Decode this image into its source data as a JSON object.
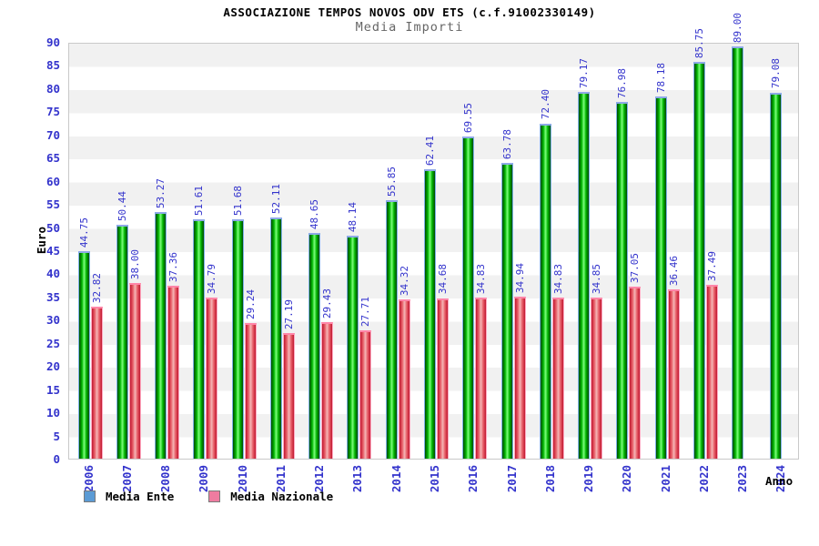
{
  "title": "ASSOCIAZIONE TEMPOS NOVOS ODV ETS (c.f.91002330149)",
  "subtitle": "Media Importi",
  "axes": {
    "y_title": "Euro",
    "x_title": "Anno"
  },
  "legend": [
    {
      "label": "Media Ente",
      "swatch_color": "#5b9bd5"
    },
    {
      "label": "Media Nazionale",
      "swatch_color": "#ee7ca0"
    }
  ],
  "chart_data": {
    "type": "bar",
    "title": "ASSOCIAZIONE TEMPOS NOVOS ODV ETS (c.f.91002330149)",
    "subtitle": "Media Importi",
    "xlabel": "Anno",
    "ylabel": "Euro",
    "ylim": [
      0,
      90
    ],
    "ytick_step": 5,
    "grid": "alternating-horizontal-bands",
    "legend_position": "bottom-left",
    "categories": [
      "2006",
      "2007",
      "2008",
      "2009",
      "2010",
      "2011",
      "2012",
      "2013",
      "2014",
      "2015",
      "2016",
      "2017",
      "2018",
      "2019",
      "2020",
      "2021",
      "2022",
      "2023",
      "2024"
    ],
    "series": [
      {
        "name": "Media Ente",
        "color": "green",
        "values": [
          44.75,
          50.44,
          53.27,
          51.61,
          51.68,
          52.11,
          48.65,
          48.14,
          55.85,
          62.41,
          69.55,
          63.78,
          72.4,
          79.17,
          76.98,
          78.18,
          85.75,
          89.0,
          79.08
        ]
      },
      {
        "name": "Media Nazionale",
        "color": "red",
        "values": [
          32.82,
          38.0,
          37.36,
          34.79,
          29.24,
          27.19,
          29.43,
          27.71,
          34.32,
          34.68,
          34.83,
          34.94,
          34.83,
          34.85,
          37.05,
          36.46,
          37.49,
          null,
          null
        ]
      }
    ]
  },
  "colors": {
    "label_blue": "#3333cc",
    "band_gray": "#f1f1f1",
    "plot_border": "#c9c9c9",
    "green_cap": "#8fa8e8",
    "red_cap": "#ff85a8",
    "subtitle_gray": "#666666"
  }
}
